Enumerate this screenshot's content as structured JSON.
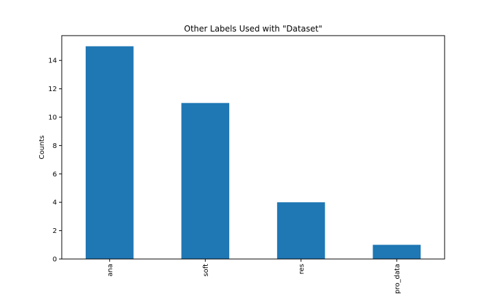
{
  "chart_data": {
    "type": "bar",
    "title": "Other Labels Used with \"Dataset\"",
    "xlabel": "",
    "ylabel": "Counts",
    "categories": [
      "ana",
      "soft",
      "res",
      "pro_data"
    ],
    "values": [
      15,
      11,
      4,
      1
    ],
    "ylim": [
      0,
      15.75
    ],
    "yticks": [
      0,
      2,
      4,
      6,
      8,
      10,
      12,
      14
    ],
    "bar_color": "#1f77b4",
    "grid": false,
    "legend": "none"
  }
}
